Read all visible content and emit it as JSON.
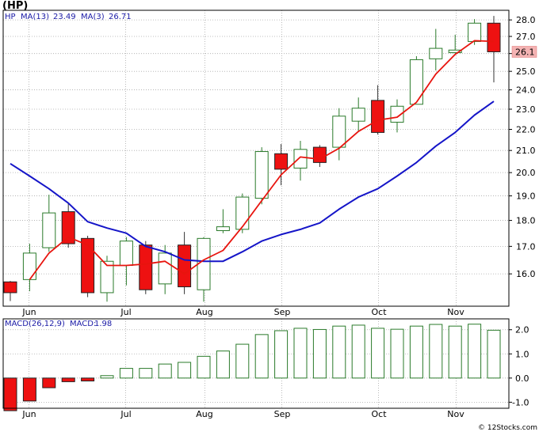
{
  "header": {
    "symbol": "(HP)"
  },
  "price_panel": {
    "legend": {
      "ticker": "HP",
      "ma13_label": "MA(13)",
      "ma13_value": "23.49",
      "ma3_label": "MA(3)",
      "ma3_value": "26.71"
    },
    "last_price_label": "26.1"
  },
  "macd_panel": {
    "legend": {
      "label": "MACD(26,12,9)",
      "value_label": "MACD:",
      "value": "1.98"
    }
  },
  "footer": {
    "copyright": "© 12Stocks.com"
  },
  "colors": {
    "up_candle": "#2a7a2a",
    "down_candle": "#ee1111",
    "ma13": "#1515c8",
    "ma3": "#e8140e",
    "macd_bar": "#2a7a2a",
    "grid": "#aaaaaa",
    "last_price_bg": "#f4b3b3"
  },
  "chart_data": [
    {
      "type": "candlestick",
      "title": "(HP)",
      "x_labels": [
        "Jun",
        "Jul",
        "Aug",
        "Sep",
        "Oct",
        "Nov"
      ],
      "y_ticks": [
        16.0,
        17.0,
        18.0,
        19.0,
        20.0,
        21.0,
        22.0,
        23.0,
        24.0,
        25.0,
        26.0,
        27.0,
        28.0
      ],
      "y_scale": "log",
      "ylim": [
        14.9,
        28.6
      ],
      "grid": true,
      "candles": [
        {
          "o": 15.72,
          "h": 15.75,
          "l": 15.07,
          "c": 15.35
        },
        {
          "o": 15.8,
          "h": 17.1,
          "l": 15.4,
          "c": 16.75
        },
        {
          "o": 16.95,
          "h": 19.05,
          "l": 16.8,
          "c": 18.3
        },
        {
          "o": 18.35,
          "h": 18.7,
          "l": 16.95,
          "c": 17.1
        },
        {
          "o": 17.3,
          "h": 17.4,
          "l": 15.2,
          "c": 15.35
        },
        {
          "o": 15.35,
          "h": 16.65,
          "l": 15.05,
          "c": 16.45
        },
        {
          "o": 16.3,
          "h": 17.35,
          "l": 15.6,
          "c": 17.2
        },
        {
          "o": 17.05,
          "h": 17.2,
          "l": 15.3,
          "c": 15.45
        },
        {
          "o": 15.65,
          "h": 17.05,
          "l": 15.3,
          "c": 16.75
        },
        {
          "o": 17.05,
          "h": 17.55,
          "l": 15.3,
          "c": 15.55
        },
        {
          "o": 15.45,
          "h": 17.35,
          "l": 15.05,
          "c": 17.3
        },
        {
          "o": 17.6,
          "h": 18.45,
          "l": 17.5,
          "c": 17.75
        },
        {
          "o": 17.65,
          "h": 19.1,
          "l": 17.5,
          "c": 18.95
        },
        {
          "o": 18.9,
          "h": 21.15,
          "l": 18.65,
          "c": 20.95
        },
        {
          "o": 20.85,
          "h": 21.3,
          "l": 19.45,
          "c": 20.15
        },
        {
          "o": 20.2,
          "h": 21.45,
          "l": 19.65,
          "c": 21.05
        },
        {
          "o": 21.15,
          "h": 21.25,
          "l": 20.25,
          "c": 20.45
        },
        {
          "o": 21.15,
          "h": 23.05,
          "l": 20.55,
          "c": 22.65
        },
        {
          "o": 22.4,
          "h": 23.6,
          "l": 21.9,
          "c": 23.05
        },
        {
          "o": 23.45,
          "h": 24.25,
          "l": 21.75,
          "c": 21.85
        },
        {
          "o": 22.35,
          "h": 23.5,
          "l": 21.85,
          "c": 23.15
        },
        {
          "o": 23.25,
          "h": 25.85,
          "l": 23.25,
          "c": 25.65
        },
        {
          "o": 25.7,
          "h": 27.45,
          "l": 25.05,
          "c": 26.3
        },
        {
          "o": 26.05,
          "h": 27.1,
          "l": 26.0,
          "c": 26.2
        },
        {
          "o": 26.7,
          "h": 28.05,
          "l": 26.5,
          "c": 27.8
        },
        {
          "o": 27.8,
          "h": 28.25,
          "l": 24.4,
          "c": 26.1
        }
      ],
      "series": [
        {
          "name": "MA(13)",
          "start_index": 0,
          "values": [
            20.4,
            19.85,
            19.3,
            18.7,
            17.95,
            17.7,
            17.5,
            17.0,
            16.8,
            16.5,
            16.45,
            16.45,
            16.8,
            17.2,
            17.45,
            17.65,
            17.9,
            18.45,
            18.95,
            19.3,
            19.85,
            20.45,
            21.2,
            21.85,
            22.7,
            23.4
          ]
        },
        {
          "name": "MA(3)",
          "start_index": 1,
          "values": [
            15.8,
            16.75,
            17.35,
            17.05,
            16.3,
            16.3,
            16.35,
            16.45,
            16.0,
            16.5,
            16.85,
            17.75,
            18.8,
            19.9,
            20.7,
            20.6,
            21.1,
            21.9,
            22.45,
            22.6,
            23.35,
            24.85,
            25.95,
            26.75,
            26.7
          ]
        }
      ]
    },
    {
      "type": "bar",
      "title": "MACD(26,12,9)",
      "y_ticks": [
        -1.0,
        0.0,
        1.0,
        2.0
      ],
      "ylim": [
        -1.25,
        2.45
      ],
      "grid": true,
      "values": [
        -1.35,
        -0.95,
        -0.4,
        -0.15,
        -0.12,
        0.1,
        0.4,
        0.4,
        0.58,
        0.65,
        0.9,
        1.12,
        1.4,
        1.8,
        1.96,
        2.06,
        2.01,
        2.15,
        2.19,
        2.06,
        2.02,
        2.15,
        2.22,
        2.15,
        2.23,
        1.98
      ]
    }
  ]
}
